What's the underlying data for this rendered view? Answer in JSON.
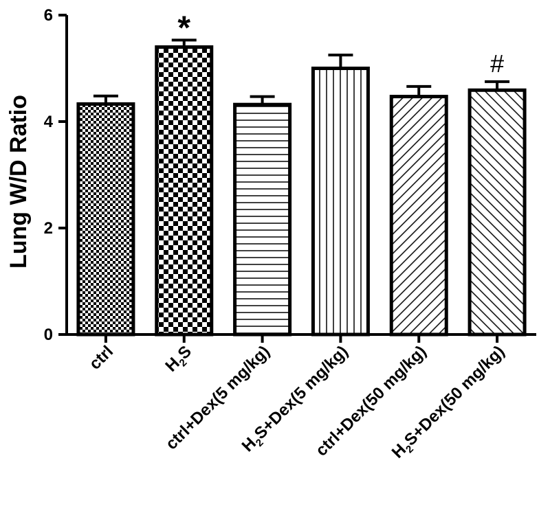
{
  "chart_data": {
    "type": "bar",
    "title": "",
    "xlabel": "",
    "ylabel": "Lung W/D Ratio",
    "ylim": [
      0,
      6
    ],
    "yticks": [
      0,
      2,
      4,
      6
    ],
    "categories": [
      {
        "main": "ctrl",
        "sub": "",
        "tail": ""
      },
      {
        "main": "H",
        "sub": "2",
        "tail": "S"
      },
      {
        "main": "ctrl+Dex(5 mg/kg)",
        "sub": "",
        "tail": ""
      },
      {
        "main": "H",
        "sub": "2",
        "tail": "S+Dex(5 mg/kg)"
      },
      {
        "main": "ctrl+Dex(50 mg/kg)",
        "sub": "",
        "tail": ""
      },
      {
        "main": "H",
        "sub": "2",
        "tail": "S+Dex(50 mg/kg)"
      }
    ],
    "values": [
      4.33,
      5.4,
      4.32,
      5.0,
      4.47,
      4.59
    ],
    "errors": [
      0.15,
      0.13,
      0.15,
      0.25,
      0.19,
      0.16
    ],
    "patterns": [
      "fine-check",
      "checker",
      "horizontal",
      "vertical",
      "diagonal-up",
      "diagonal-down"
    ],
    "annotations": [
      {
        "index": 1,
        "text": "*",
        "kind": "star"
      },
      {
        "index": 5,
        "text": "#",
        "kind": "hash"
      }
    ]
  }
}
